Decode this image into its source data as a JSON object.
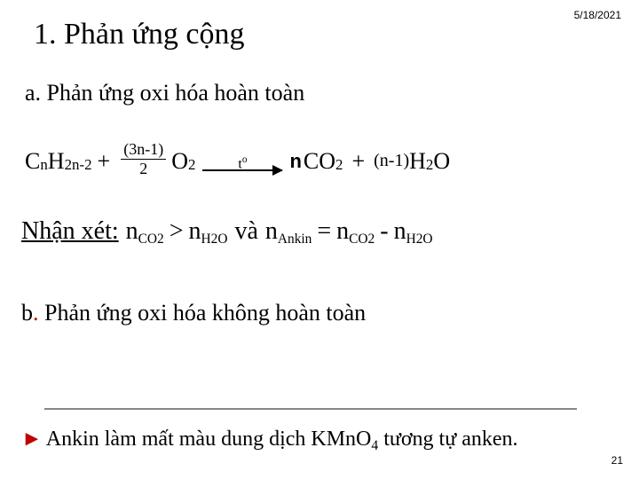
{
  "date": "5/18/2021",
  "title1": "1. Phản ứng cộng",
  "subtitleA": "a. Phản ứng oxi hóa hoàn toàn",
  "equation": {
    "reagent_base": "C",
    "reagent_sub1": "n",
    "reagent_H": "H",
    "reagent_sub2": "2n-2",
    "plus1": "+",
    "frac_num": "(3n-1)",
    "frac_den": "2",
    "O": "O",
    "O_sub": "2",
    "arrow_label_t": "t",
    "arrow_label_o": "o",
    "coef_n": "n",
    "CO": "CO",
    "CO_sub": "2",
    "plus2": "+",
    "coef2": "(n-1)",
    "H2O_H": "H",
    "H2O_2": "2",
    "H2O_O": "O"
  },
  "remark": {
    "label": "Nhận xét:",
    "n": "n",
    "co2_sub": "CO2",
    "gt": ">",
    "h2o_sub": "H2O",
    "va": "và",
    "ankin_sub": "Ankin",
    "eq": "=",
    "minus": "-"
  },
  "subtitleB_b": "b",
  "subtitleB_dot": ".",
  "subtitleB_rest": " Phản ứng oxi hóa không hoàn toàn",
  "note": {
    "marker": "►",
    "text1": "Ankin làm mất màu dung dịch KMnO",
    "sub4": "4",
    "text2": " tương tự anken."
  },
  "pagenum": "21"
}
